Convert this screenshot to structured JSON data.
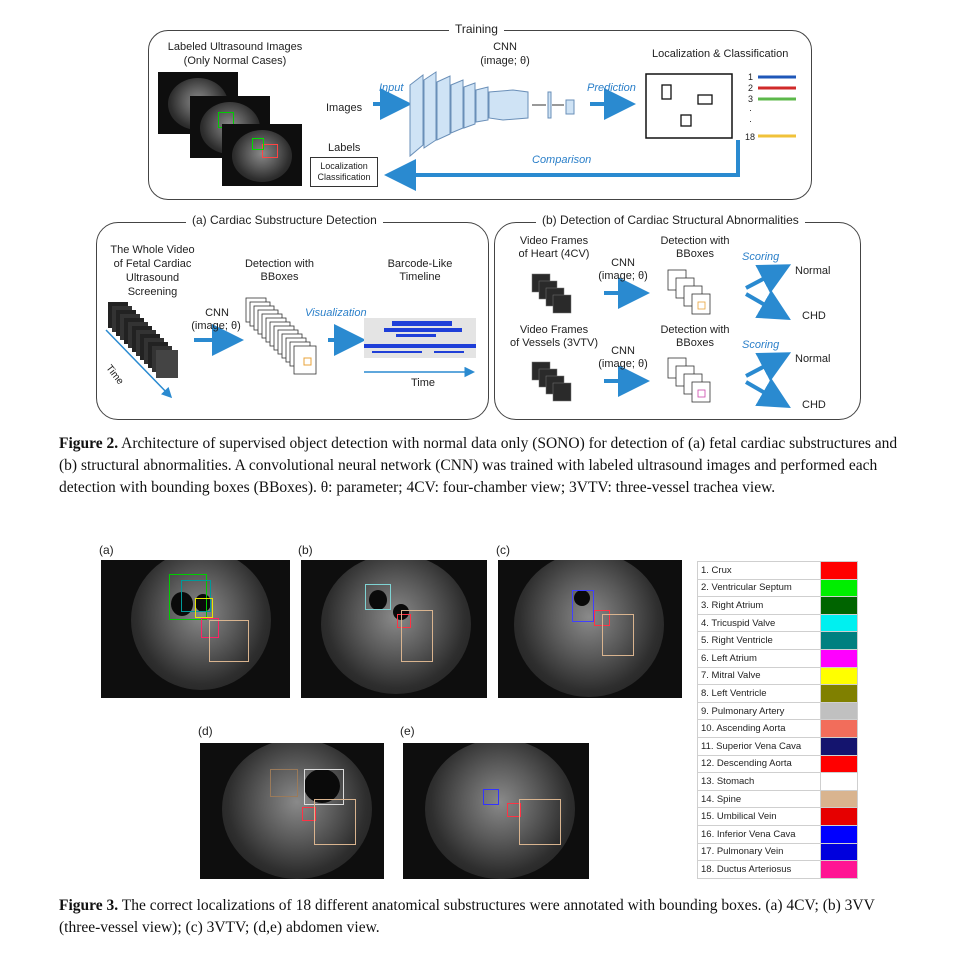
{
  "figure2": {
    "training": {
      "title": "Training",
      "labeled_images": "Labeled Ultrasound Images",
      "normal_cases": "(Only Normal Cases)",
      "input": "Input",
      "images": "Images",
      "cnn": "CNN",
      "cnn_param": "(image; θ)",
      "prediction": "Prediction",
      "loc_class_title": "Localization & Classification",
      "labels": "Labels",
      "labels_box": [
        "Localization",
        "Classification"
      ],
      "comparison": "Comparison",
      "class_numbers": [
        "1",
        "2",
        "3",
        "·",
        "·",
        "18"
      ],
      "class_colors": [
        "#1f57b8",
        "#d02a2a",
        "#5cb84a",
        "#f0c23a"
      ]
    },
    "panel_a": {
      "title": "(a) Cardiac Substructure Detection",
      "video_label": [
        "The Whole Video",
        "of Fetal Cardiac",
        "Ultrasound",
        "Screening"
      ],
      "time_axis": "Time",
      "cnn": "CNN",
      "cnn_param": "(image; θ)",
      "detection": [
        "Detection with",
        "BBoxes"
      ],
      "visualization": "Visualization",
      "barcode": [
        "Barcode-Like",
        "Timeline"
      ],
      "time_label": "Time"
    },
    "panel_b": {
      "title": "(b) Detection of Cardiac Structural Abnormalities",
      "frames_4cv": [
        "Video Frames",
        "of Heart (4CV)"
      ],
      "frames_3vtv": [
        "Video Frames",
        "of Vessels (3VTV)"
      ],
      "cnn": "CNN",
      "cnn_param": "(image; θ)",
      "detection": [
        "Detection with",
        "BBoxes"
      ],
      "scoring": "Scoring",
      "normal": "Normal",
      "chd": "CHD"
    },
    "caption": {
      "label": "Figure 2.",
      "text": "Architecture of supervised object detection with normal data only (SONO) for detection of (a) fetal cardiac substructures and (b) structural abnormalities. A convolutional neural network (CNN) was trained with labeled ultrasound images and performed each detection with bounding boxes (BBoxes). θ: parameter; 4CV: four-chamber view; 3VTV: three-vessel trachea view."
    }
  },
  "figure3": {
    "sub_labels": [
      "(a)",
      "(b)",
      "(c)",
      "(d)",
      "(e)"
    ],
    "legend": [
      {
        "label": "1. Crux",
        "color": "#ff0000"
      },
      {
        "label": "2. Ventricular Septum",
        "color": "#00ee00"
      },
      {
        "label": "3. Right Atrium",
        "color": "#006400"
      },
      {
        "label": "4. Tricuspid Valve",
        "color": "#00f0f0"
      },
      {
        "label": "5. Right Ventricle",
        "color": "#008080"
      },
      {
        "label": "6. Left Atrium",
        "color": "#ff00ff"
      },
      {
        "label": "7. Mitral Valve",
        "color": "#ffff00"
      },
      {
        "label": "8. Left Ventricle",
        "color": "#808000"
      },
      {
        "label": "9. Pulmonary Artery",
        "color": "#c0c0c0"
      },
      {
        "label": "10. Ascending Aorta",
        "color": "#f26d5b"
      },
      {
        "label": "11. Superior Vena Cava",
        "color": "#14146e"
      },
      {
        "label": "12. Descending Aorta",
        "color": "#ff0000"
      },
      {
        "label": "13. Stomach",
        "color": "#ffffff"
      },
      {
        "label": "14. Spine",
        "color": "#d9b48f"
      },
      {
        "label": "15. Umbilical Vein",
        "color": "#e60000"
      },
      {
        "label": "16. Inferior Vena Cava",
        "color": "#0000ff"
      },
      {
        "label": "17. Pulmonary Vein",
        "color": "#0000dd"
      },
      {
        "label": "18. Ductus Arteriosus",
        "color": "#ff1493"
      }
    ],
    "caption": {
      "label": "Figure 3.",
      "text": "The correct localizations of 18 different anatomical substructures were annotated with bounding boxes. (a) 4CV; (b) 3VV (three-vessel view); (c) 3VTV; (d,e) abdomen view."
    }
  }
}
